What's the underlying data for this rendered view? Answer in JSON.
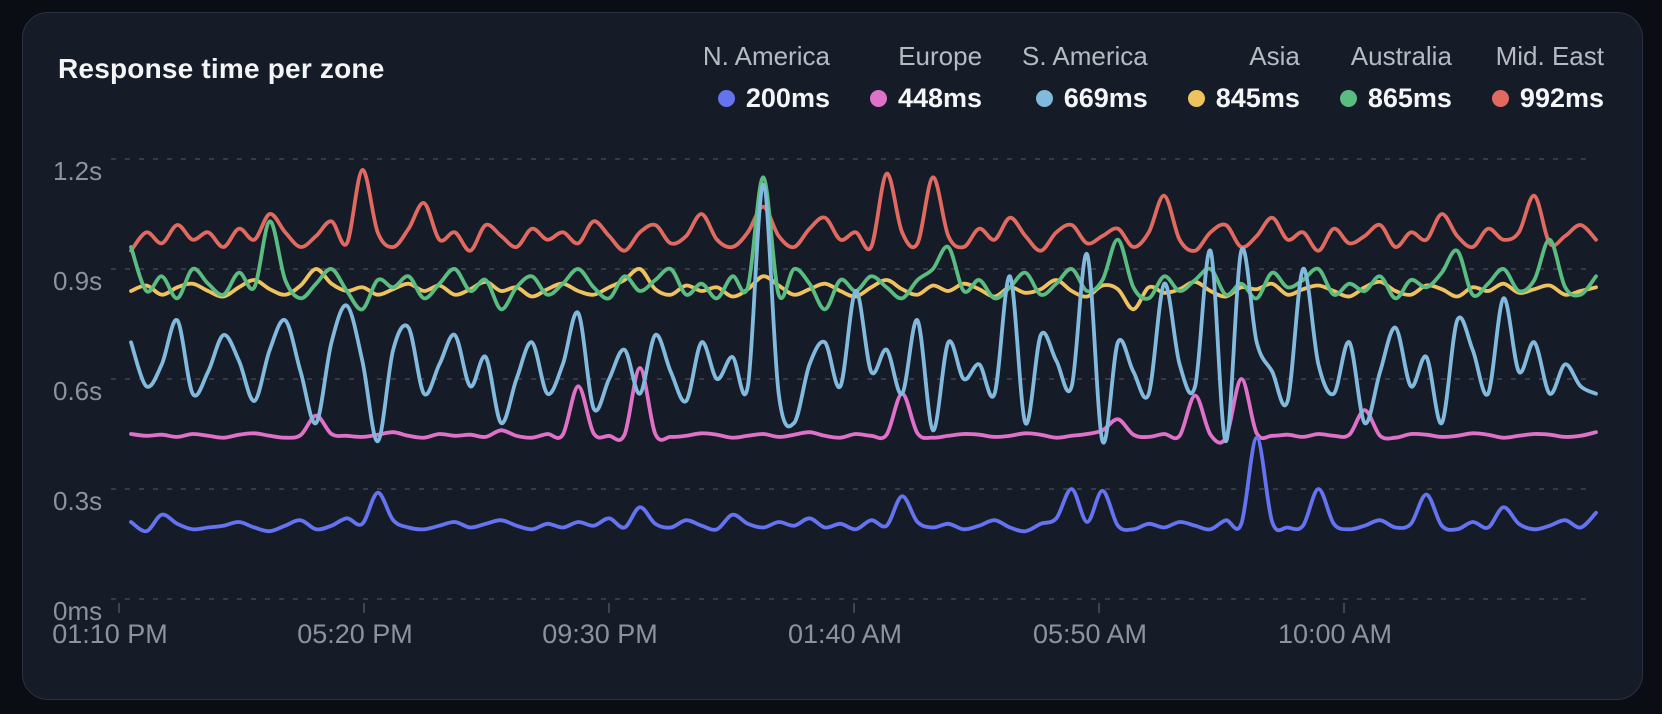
{
  "card": {
    "title": "Response time per zone"
  },
  "colors": {
    "page_bg": "#0a0d13",
    "card_bg": "#161b28",
    "card_border": "#2b3141",
    "grid": "#5d626e",
    "axis_text": "#8d939e",
    "legend_name": "#b6bac3",
    "legend_value": "#f5f6f8"
  },
  "chart_data": {
    "type": "line",
    "title": "Response time per zone",
    "unit": "ms",
    "grid": "dashed-horizontal",
    "legend_position": "top-right",
    "ylim_ms": [
      0,
      1200
    ],
    "y_ticks": [
      "1.2s",
      "0.9s",
      "0.6s",
      "0.3s",
      "0ms"
    ],
    "y_tick_values_ms": [
      1200,
      900,
      600,
      300,
      0
    ],
    "x_ticks": [
      "01:10 PM",
      "05:20 PM",
      "09:30 PM",
      "01:40 AM",
      "05:50 AM",
      "10:00 AM"
    ],
    "draw_order": [
      "Mid. East",
      "Asia",
      "Australia",
      "Europe",
      "S. America",
      "N. America"
    ],
    "series": [
      {
        "name": "N. America",
        "current": "200ms",
        "color": "#6473f0",
        "values": [
          210,
          185,
          230,
          205,
          190,
          195,
          200,
          210,
          195,
          185,
          200,
          215,
          190,
          200,
          220,
          205,
          290,
          215,
          195,
          190,
          200,
          210,
          195,
          205,
          215,
          200,
          190,
          205,
          195,
          210,
          200,
          220,
          195,
          250,
          205,
          195,
          215,
          200,
          190,
          230,
          205,
          195,
          210,
          200,
          220,
          195,
          205,
          190,
          215,
          200,
          280,
          210,
          195,
          205,
          190,
          200,
          215,
          195,
          185,
          205,
          220,
          300,
          210,
          295,
          200,
          190,
          205,
          195,
          210,
          200,
          190,
          215,
          205,
          440,
          210,
          195,
          200,
          300,
          205,
          190,
          200,
          215,
          195,
          205,
          285,
          200,
          190,
          210,
          195,
          250,
          205,
          190,
          200,
          215,
          195,
          235
        ]
      },
      {
        "name": "Europe",
        "current": "448ms",
        "color": "#e071c9",
        "values": [
          450,
          445,
          448,
          442,
          450,
          445,
          440,
          448,
          452,
          445,
          440,
          447,
          500,
          450,
          445,
          442,
          448,
          455,
          445,
          440,
          450,
          445,
          448,
          442,
          460,
          445,
          440,
          450,
          448,
          580,
          452,
          445,
          448,
          630,
          450,
          442,
          445,
          452,
          448,
          440,
          445,
          450,
          442,
          448,
          455,
          445,
          440,
          450,
          445,
          448,
          560,
          452,
          440,
          445,
          450,
          448,
          442,
          445,
          452,
          448,
          440,
          445,
          450,
          460,
          490,
          448,
          442,
          450,
          445,
          555,
          448,
          440,
          600,
          452,
          445,
          448,
          442,
          450,
          445,
          448,
          515,
          445,
          440,
          450,
          448,
          442,
          445,
          452,
          448,
          440,
          445,
          450,
          448,
          442,
          445,
          455
        ]
      },
      {
        "name": "S. America",
        "current": "669ms",
        "color": "#82bade",
        "values": [
          700,
          580,
          640,
          760,
          560,
          620,
          720,
          650,
          540,
          680,
          760,
          620,
          480,
          700,
          800,
          650,
          430,
          680,
          740,
          560,
          640,
          720,
          580,
          660,
          480,
          600,
          700,
          560,
          640,
          780,
          520,
          600,
          680,
          560,
          720,
          620,
          540,
          700,
          600,
          660,
          580,
          1130,
          560,
          480,
          640,
          700,
          580,
          840,
          620,
          680,
          560,
          760,
          460,
          700,
          600,
          640,
          560,
          880,
          480,
          720,
          650,
          580,
          940,
          430,
          700,
          620,
          560,
          860,
          640,
          580,
          950,
          430,
          950,
          700,
          620,
          540,
          900,
          640,
          560,
          700,
          480,
          620,
          740,
          580,
          660,
          480,
          760,
          680,
          560,
          820,
          620,
          700,
          560,
          640,
          580,
          560
        ]
      },
      {
        "name": "Asia",
        "current": "845ms",
        "color": "#eec35f",
        "values": [
          840,
          855,
          830,
          850,
          860,
          840,
          825,
          850,
          870,
          845,
          830,
          855,
          900,
          860,
          840,
          850,
          830,
          845,
          860,
          840,
          855,
          830,
          845,
          865,
          840,
          850,
          825,
          845,
          860,
          840,
          830,
          850,
          870,
          900,
          845,
          830,
          855,
          840,
          850,
          825,
          845,
          880,
          855,
          830,
          845,
          860,
          840,
          825,
          850,
          870,
          845,
          830,
          855,
          840,
          860,
          845,
          825,
          850,
          835,
          845,
          870,
          840,
          825,
          855,
          845,
          790,
          850,
          835,
          845,
          865,
          840,
          825,
          850,
          845,
          860,
          830,
          845,
          855,
          840,
          825,
          850,
          865,
          840,
          830,
          855,
          845,
          825,
          850,
          840,
          860,
          835,
          845,
          855,
          830,
          840,
          850
        ]
      },
      {
        "name": "Australia",
        "current": "865ms",
        "color": "#5abc81",
        "values": [
          960,
          840,
          880,
          820,
          900,
          860,
          830,
          890,
          850,
          1030,
          870,
          820,
          860,
          900,
          840,
          790,
          870,
          850,
          880,
          820,
          860,
          900,
          840,
          870,
          790,
          850,
          880,
          830,
          860,
          900,
          850,
          820,
          880,
          840,
          870,
          900,
          830,
          860,
          820,
          880,
          850,
          1150,
          830,
          900,
          860,
          790,
          870,
          840,
          880,
          850,
          820,
          870,
          900,
          960,
          840,
          870,
          820,
          850,
          890,
          830,
          860,
          900,
          840,
          870,
          980,
          850,
          820,
          880,
          840,
          870,
          900,
          830,
          860,
          820,
          890,
          850,
          870,
          900,
          830,
          860,
          840,
          880,
          820,
          870,
          850,
          890,
          950,
          830,
          860,
          900,
          840,
          870,
          980,
          850,
          830,
          880
        ]
      },
      {
        "name": "Mid. East",
        "current": "992ms",
        "color": "#e06a60",
        "values": [
          950,
          1000,
          970,
          1020,
          980,
          1000,
          960,
          1010,
          980,
          1050,
          1000,
          960,
          990,
          1030,
          970,
          1170,
          1000,
          960,
          1010,
          1080,
          980,
          1000,
          950,
          1020,
          990,
          960,
          1010,
          980,
          1000,
          970,
          1030,
          990,
          950,
          1000,
          1020,
          970,
          990,
          1050,
          980,
          960,
          1000,
          1070,
          990,
          960,
          1010,
          1040,
          980,
          1000,
          960,
          1160,
          1000,
          970,
          1150,
          990,
          960,
          1010,
          980,
          1040,
          990,
          950,
          1000,
          1020,
          970,
          990,
          1010,
          960,
          1000,
          1100,
          980,
          950,
          1000,
          1020,
          960,
          990,
          1040,
          980,
          1000,
          950,
          1010,
          970,
          990,
          1020,
          960,
          1000,
          980,
          1050,
          990,
          960,
          1010,
          980,
          1000,
          1100,
          970,
          990,
          1020,
          980
        ]
      }
    ]
  }
}
